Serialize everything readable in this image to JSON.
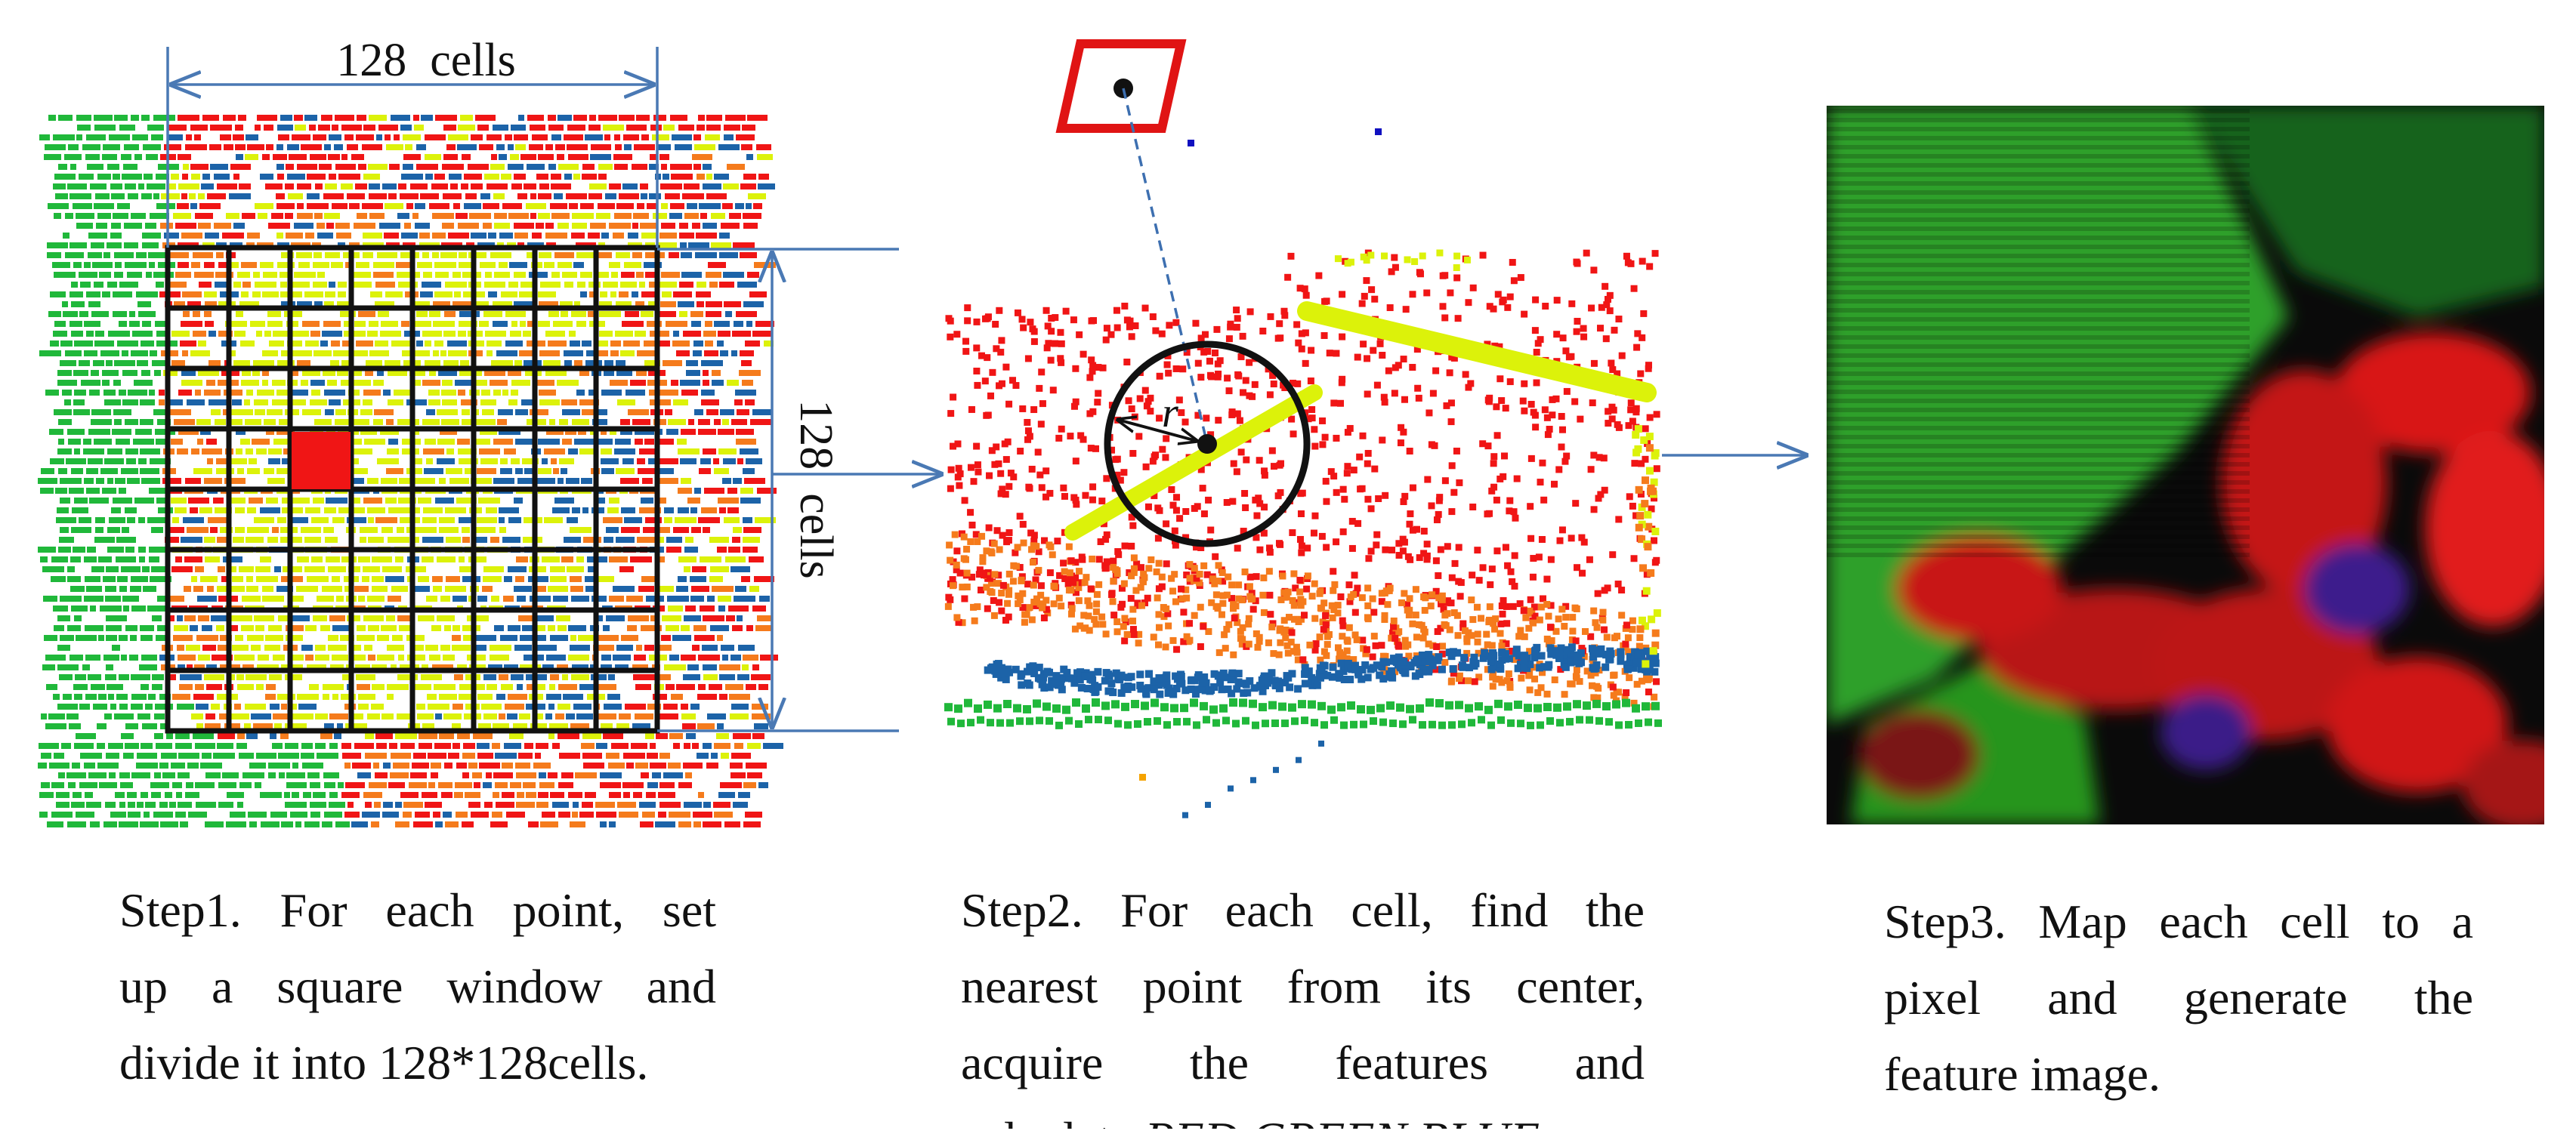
{
  "colors": {
    "red": "#f01515",
    "yellow": "#dcf20a",
    "orange": "#f57b1c",
    "blue": "#1c63a8",
    "green": "#20b83a",
    "arrow": "#4a79b4",
    "frame": "#111111"
  },
  "step1": {
    "top_dimension": "128  cells",
    "side_dimension": "128  cells",
    "caption_lines": [
      "Step1. For each point, set",
      "up a square window and",
      "divide it into 128*128cells."
    ]
  },
  "step2": {
    "radius_label": "r",
    "caption_lines": [
      "Step2. For each cell, find the",
      "nearest point from its center,",
      "acquire the features and"
    ],
    "caption_last_prefix": "calculate ",
    "caption_last_italic": "RED GREEN BLUE."
  },
  "step3": {
    "caption_lines": [
      "Step3. Map each cell to a",
      "pixel and generate the",
      "feature image."
    ]
  }
}
